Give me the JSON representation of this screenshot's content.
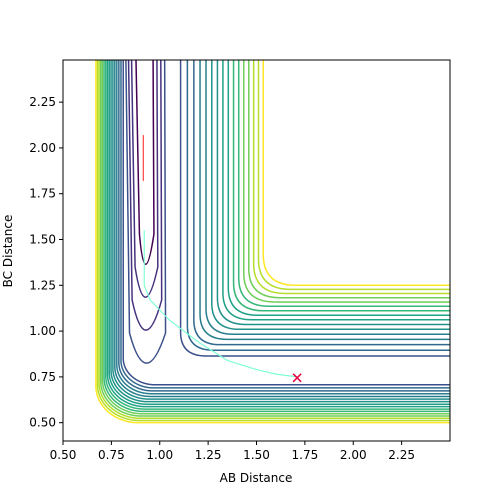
{
  "chart_data": {
    "type": "contour",
    "title": "",
    "xlabel": "AB Distance",
    "ylabel": "BC Distance",
    "xlim": [
      0.5,
      2.5
    ],
    "ylim": [
      0.4,
      2.48
    ],
    "xticks": [
      "0.50",
      "0.75",
      "1.00",
      "1.25",
      "1.50",
      "1.75",
      "2.00",
      "2.25"
    ],
    "yticks": [
      "0.50",
      "0.75",
      "1.00",
      "1.25",
      "1.50",
      "1.75",
      "2.00",
      "2.25"
    ],
    "grid": false,
    "legend": "none",
    "contour_levels": 20,
    "colormap": "viridis",
    "contour_colors": [
      "#440154",
      "#46327e",
      "#3b518b",
      "#31688e",
      "#277f8e",
      "#21918c",
      "#1fa187",
      "#35b779",
      "#6ece58",
      "#b5de2b",
      "#fde725"
    ],
    "trajectory": {
      "color": "#7fffd4",
      "points": [
        [
          0.92,
          1.55
        ],
        [
          0.92,
          1.4
        ],
        [
          0.92,
          1.25
        ],
        [
          0.95,
          1.17
        ],
        [
          1.05,
          1.06
        ],
        [
          1.2,
          0.94
        ],
        [
          1.35,
          0.84
        ],
        [
          1.5,
          0.79
        ],
        [
          1.6,
          0.765
        ],
        [
          1.71,
          0.75
        ]
      ]
    },
    "initial_segment": {
      "color": "#ff4040",
      "points": [
        [
          0.915,
          2.07
        ],
        [
          0.915,
          1.82
        ]
      ]
    },
    "end_marker": {
      "symbol": "x",
      "color": "#e8003d",
      "x": 1.71,
      "y": 0.745
    }
  }
}
